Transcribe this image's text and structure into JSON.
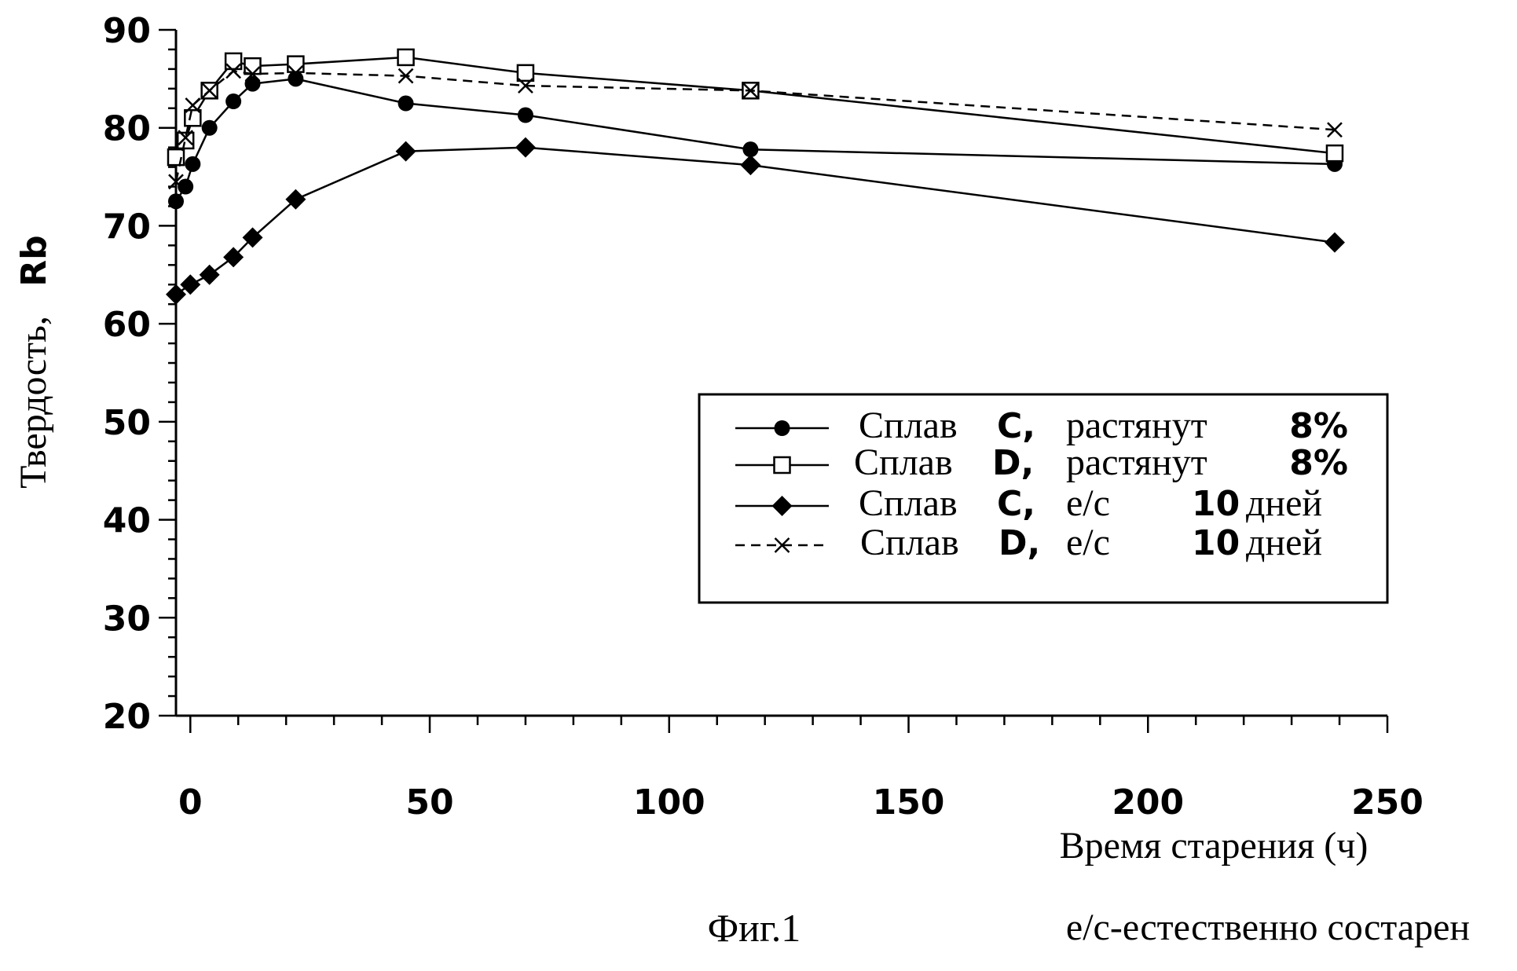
{
  "chart_data": {
    "type": "line",
    "title": "",
    "xlabel": "Время старения (ч)",
    "ylabel_text": "Твердость,",
    "ylabel_unit": "Rb",
    "xlim": [
      -3,
      250
    ],
    "ylim": [
      20,
      90
    ],
    "x_ticks": [
      "0",
      "50",
      "100",
      "150",
      "200",
      "250"
    ],
    "y_ticks": [
      "20",
      "30",
      "40",
      "50",
      "60",
      "70",
      "80",
      "90"
    ],
    "grid": false,
    "legend_position": "center-right",
    "series": [
      {
        "legend": {
          "prefix": "Сплав",
          "letter": "C,",
          "state": "растянут",
          "amount": "8%",
          "unit": ""
        },
        "marker": "filled-circle",
        "dash": "solid",
        "x": [
          -3,
          -1,
          0.5,
          4,
          9,
          13,
          22,
          45,
          70,
          117,
          239
        ],
        "y": [
          72.5,
          74,
          76.3,
          80,
          82.7,
          84.5,
          85,
          82.5,
          81.3,
          77.8,
          76.3
        ]
      },
      {
        "legend": {
          "prefix": "Сплав",
          "letter": "D,",
          "state": "растянут",
          "amount": "8%",
          "unit": ""
        },
        "marker": "open-square",
        "dash": "solid",
        "x": [
          -3,
          -1,
          0.5,
          4,
          9,
          13,
          22,
          45,
          70,
          117,
          239
        ],
        "y": [
          77,
          78.7,
          81,
          83.8,
          86.8,
          86.3,
          86.5,
          87.2,
          85.6,
          83.8,
          77.4
        ]
      },
      {
        "legend": {
          "prefix": "Сплав",
          "letter": "C,",
          "state": "е/с",
          "amount": "10",
          "unit": "дней"
        },
        "marker": "filled-diamond",
        "dash": "solid",
        "x": [
          -3,
          0,
          4,
          9,
          13,
          22,
          45,
          70,
          117,
          239
        ],
        "y": [
          63,
          64,
          65,
          66.8,
          68.8,
          72.7,
          77.6,
          78,
          76.2,
          68.3
        ]
      },
      {
        "legend": {
          "prefix": "Сплав",
          "letter": "D,",
          "state": "е/с",
          "amount": "10",
          "unit": "дней"
        },
        "marker": "x-cross",
        "dash": "dashed",
        "x": [
          -3,
          -1,
          0.5,
          4,
          9,
          13,
          22,
          45,
          70,
          117,
          239
        ],
        "y": [
          74.5,
          79,
          82.3,
          83.8,
          85.8,
          85.5,
          85.6,
          85.3,
          84.3,
          83.8,
          79.8
        ]
      }
    ],
    "caption": "Фиг.1",
    "footnote": "е/с-естественно состарен"
  }
}
